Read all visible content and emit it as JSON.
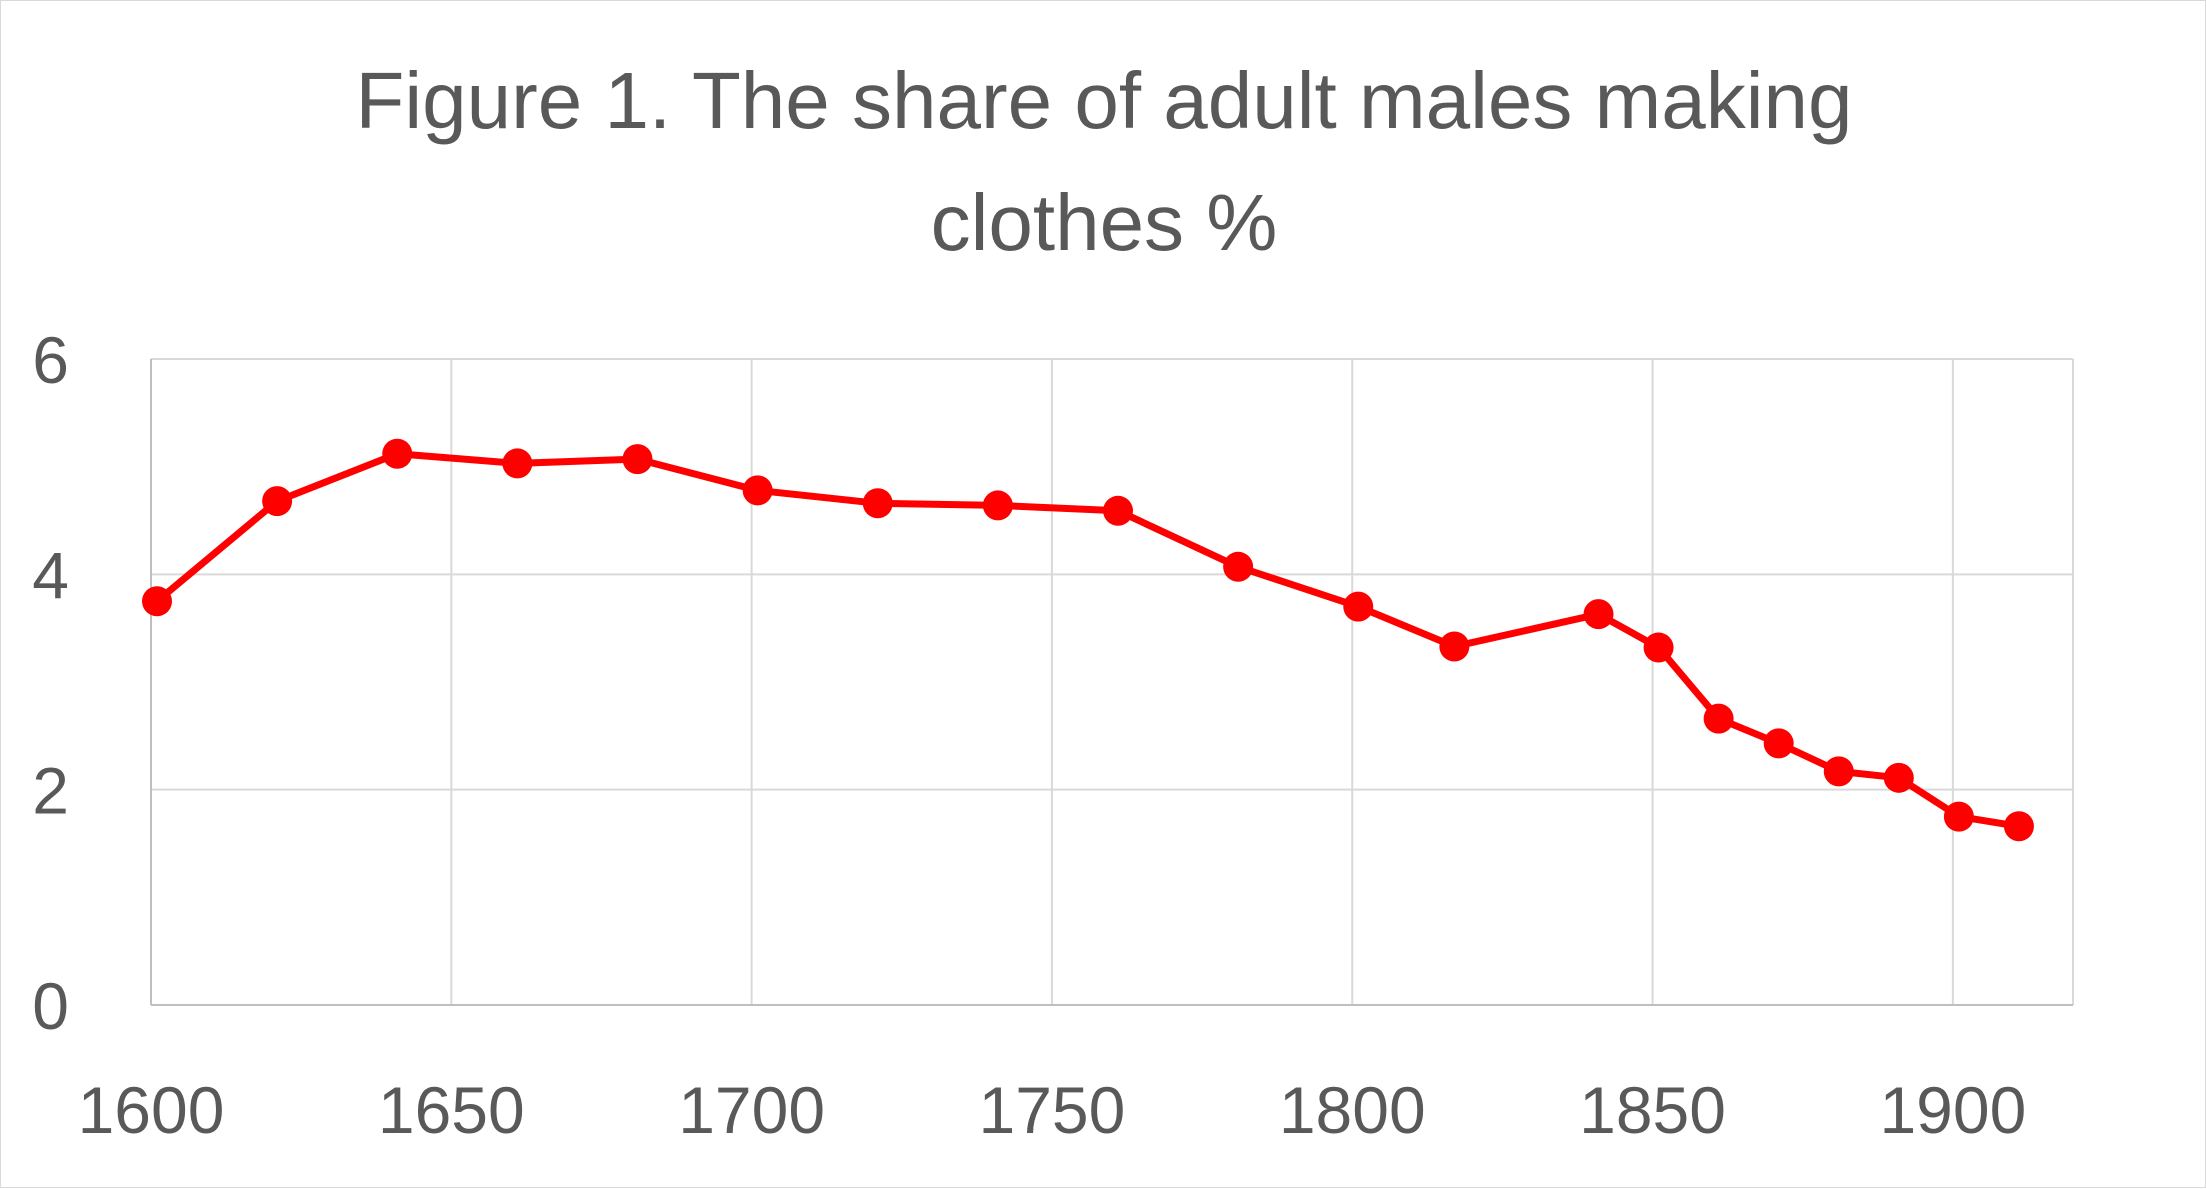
{
  "colors": {
    "series": "#ff0000",
    "text": "#595959",
    "grid": "#d9d9d9"
  },
  "chart_data": {
    "type": "line",
    "title_lines": [
      "Figure 1. The share of adult males making",
      "clothes %"
    ],
    "xlabel": "",
    "ylabel": "",
    "xlim": [
      1600,
      1920
    ],
    "ylim": [
      0,
      6
    ],
    "x_ticks": [
      1600,
      1650,
      1700,
      1750,
      1800,
      1850,
      1900
    ],
    "y_ticks": [
      0,
      2,
      4,
      6
    ],
    "grid": true,
    "legend": "none",
    "series": [
      {
        "x": [
          1601,
          1621,
          1641,
          1661,
          1681,
          1701,
          1721,
          1741,
          1761,
          1781,
          1801,
          1817,
          1841,
          1851,
          1861,
          1871,
          1881,
          1891,
          1901,
          1911
        ],
        "y": [
          3.75,
          4.68,
          5.12,
          5.03,
          5.07,
          4.78,
          4.66,
          4.64,
          4.59,
          4.07,
          3.7,
          3.33,
          3.63,
          3.32,
          2.66,
          2.43,
          2.17,
          2.11,
          1.75,
          1.66
        ]
      }
    ]
  }
}
